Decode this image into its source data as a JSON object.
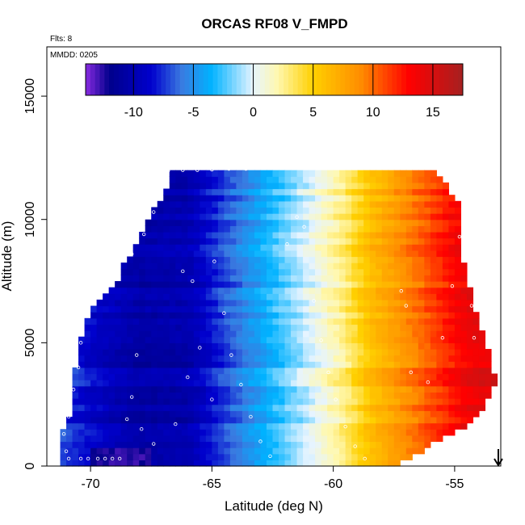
{
  "chart_data": {
    "type": "heatmap",
    "title": "ORCAS RF08 V_FMPD",
    "subtitle_left": "Flts: 8",
    "annotation": "MMDD: 0205",
    "xlabel": "Latitude (deg N)",
    "ylabel": "Altitude (m)",
    "xlim": [
      -71.8,
      -53.1
    ],
    "ylim": [
      0,
      17000
    ],
    "xticks": [
      -70,
      -65,
      -60,
      -55
    ],
    "xtick_labels": [
      "-70",
      "-65",
      "-60",
      "-55"
    ],
    "yticks": [
      0,
      5000,
      10000,
      15000
    ],
    "ytick_labels": [
      "0",
      "5000",
      "10000",
      "15000"
    ],
    "grid": false,
    "colorbar": {
      "placement": "top-inside",
      "range": [
        -14,
        17.5
      ],
      "ticks": [
        -10,
        -5,
        0,
        5,
        10,
        15
      ],
      "tick_labels": [
        "-10",
        "-5",
        "0",
        "5",
        "10",
        "15"
      ],
      "colors": [
        "#8a2be2",
        "#00008b",
        "#0000cd",
        "#3a7ae0",
        "#00b2ff",
        "#e6f4ff",
        "#fff8b0",
        "#ffd000",
        "#ff8c00",
        "#ff0000",
        "#a52020"
      ],
      "color_stops": [
        -14,
        -12,
        -8.5,
        -6,
        -3.5,
        0,
        2,
        5,
        9,
        13,
        17.5
      ]
    },
    "value_gradient": {
      "latitudes": [
        -71.5,
        -70,
        -68,
        -66,
        -64,
        -62.5,
        -61.5,
        -60.5,
        -59.5,
        -58.5,
        -57,
        -55.5,
        -54.5,
        -53.2
      ],
      "values": [
        -6.5,
        -8.5,
        -10.5,
        -10,
        -6,
        -3,
        -1,
        1,
        3,
        6,
        9,
        12,
        14,
        15
      ],
      "low_altitude_min": -13
    },
    "domain_edges": {
      "altitude": [
        0,
        500,
        1000,
        1500,
        2000,
        2500,
        3000,
        3500,
        4000,
        4500,
        5000,
        5500,
        6000,
        6500,
        7000,
        7500,
        8000,
        8500,
        9000,
        9500,
        10000,
        10500,
        11000,
        11500,
        12000
      ],
      "lat_min": [
        -71.3,
        -71.3,
        -71.3,
        -71.1,
        -70.9,
        -70.6,
        -70.8,
        -70.8,
        -70.6,
        -70.4,
        -70.4,
        -70.3,
        -70.2,
        -69.8,
        -69.5,
        -68.9,
        -68.7,
        -68.4,
        -68.1,
        -67.9,
        -67.6,
        -67.3,
        -67.0,
        -66.8,
        -66.6
      ],
      "lat_max": [
        -57.7,
        -56.7,
        -55.8,
        -54.9,
        -54.2,
        -53.8,
        -53.6,
        -53.3,
        -53.6,
        -53.6,
        -53.8,
        -54.0,
        -54.1,
        -54.3,
        -54.4,
        -54.6,
        -54.6,
        -54.8,
        -54.8,
        -54.8,
        -54.9,
        -54.9,
        -55.2,
        -55.4,
        -55.9
      ]
    },
    "flight_arrow": {
      "latitude": -53.2,
      "altitude": 300,
      "direction": "down"
    },
    "track_points": [
      [
        -67.7,
        11.9
      ],
      [
        -67.3,
        11.95
      ],
      [
        -66.8,
        11.98
      ],
      [
        -66.2,
        12.0
      ],
      [
        -65.6,
        12.0
      ],
      [
        -65.0,
        12.02
      ],
      [
        -64.3,
        12.05
      ],
      [
        -63.6,
        12.05
      ],
      [
        -62.9,
        12.08
      ],
      [
        -62.2,
        12.1
      ],
      [
        -61.5,
        12.12
      ],
      [
        -60.8,
        12.15
      ],
      [
        -60.1,
        12.18
      ],
      [
        -59.4,
        12.2
      ],
      [
        -58.6,
        12.22
      ],
      [
        -57.8,
        12.25
      ],
      [
        -57.0,
        12.25
      ],
      [
        -56.3,
        12.2
      ],
      [
        -67.2,
        11.2
      ],
      [
        -67.4,
        10.3
      ],
      [
        -67.8,
        9.4
      ],
      [
        -68.3,
        8.6
      ],
      [
        -69.0,
        7.7
      ],
      [
        -69.7,
        6.9
      ],
      [
        -70.4,
        5.0
      ],
      [
        -70.5,
        4.0
      ],
      [
        -70.7,
        3.1
      ],
      [
        -70.9,
        2.0
      ],
      [
        -71.1,
        1.3
      ],
      [
        -71.0,
        0.6
      ],
      [
        -66.2,
        7.9
      ],
      [
        -65.8,
        7.5
      ],
      [
        -64.9,
        8.3
      ],
      [
        -64.5,
        6.2
      ],
      [
        -64.2,
        4.5
      ],
      [
        -63.8,
        3.3
      ],
      [
        -63.4,
        2.0
      ],
      [
        -63.0,
        1.0
      ],
      [
        -62.6,
        0.4
      ],
      [
        -61.9,
        9.0
      ],
      [
        -61.5,
        10.1
      ],
      [
        -61.2,
        9.7
      ],
      [
        -60.8,
        6.7
      ],
      [
        -60.5,
        5.1
      ],
      [
        -60.2,
        3.8
      ],
      [
        -59.9,
        2.7
      ],
      [
        -59.5,
        1.6
      ],
      [
        -59.1,
        0.8
      ],
      [
        -58.7,
        0.3
      ],
      [
        -57.2,
        7.1
      ],
      [
        -57.0,
        6.5
      ],
      [
        -56.8,
        3.8
      ],
      [
        -56.1,
        3.4
      ],
      [
        -55.5,
        5.2
      ],
      [
        -55.1,
        7.3
      ],
      [
        -54.8,
        9.3
      ],
      [
        -54.6,
        8.4
      ],
      [
        -54.3,
        6.5
      ],
      [
        -54.2,
        5.2
      ],
      [
        -68.8,
        0.3
      ],
      [
        -69.1,
        0.3
      ],
      [
        -69.4,
        0.3
      ],
      [
        -69.7,
        0.3
      ],
      [
        -70.1,
        0.3
      ],
      [
        -70.4,
        0.3
      ],
      [
        -70.9,
        0.3
      ],
      [
        -68.1,
        4.5
      ],
      [
        -68.3,
        2.8
      ],
      [
        -68.5,
        1.9
      ],
      [
        -67.9,
        1.5
      ],
      [
        -67.4,
        0.9
      ],
      [
        -66.5,
        1.7
      ],
      [
        -66.0,
        3.6
      ],
      [
        -65.5,
        4.8
      ],
      [
        -65.0,
        2.7
      ]
    ]
  }
}
